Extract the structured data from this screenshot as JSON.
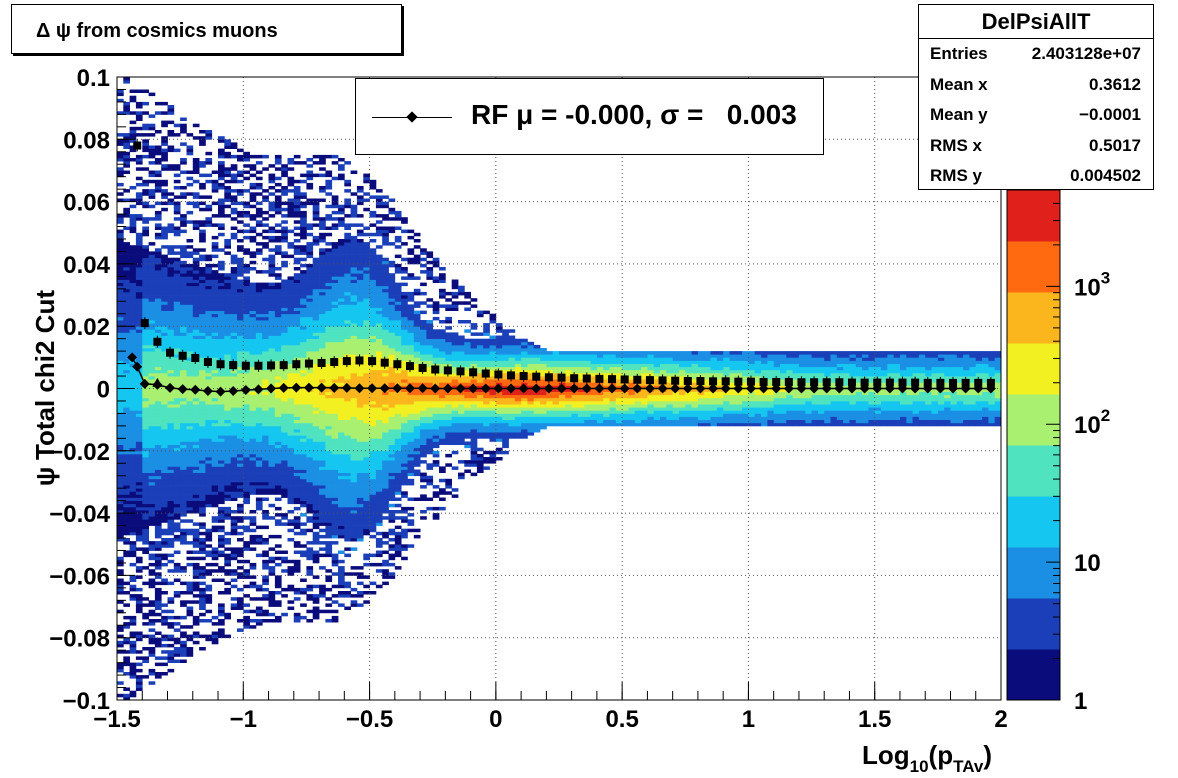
{
  "title": "Δ ψ from cosmics muons",
  "stats": {
    "name": "DelPsiAllT",
    "rows": [
      {
        "label": "Entries",
        "value": "2.403128e+07"
      },
      {
        "label": "Mean x",
        "value": "0.3612"
      },
      {
        "label": "Mean y",
        "value": "−0.0001"
      },
      {
        "label": "RMS x",
        "value": "0.5017"
      },
      {
        "label": "RMS y",
        "value": "0.004502"
      }
    ]
  },
  "legend": {
    "label": "RF μ = -0.000, σ =   0.003"
  },
  "chart_data": {
    "type": "heatmap",
    "xlabel": {
      "main": "Log",
      "sub1": "10",
      "mid": "(p",
      "sub2": "TAv",
      "end": ")"
    },
    "ylabel": {
      "main": "ψ",
      "rest": "Total chi2 Cut"
    },
    "xlim": [
      -1.5,
      2
    ],
    "ylim": [
      -0.1,
      0.1
    ],
    "x_ticks": [
      "−1.5",
      "−1",
      "−0.5",
      "0",
      "0.5",
      "1",
      "1.5",
      "2"
    ],
    "x_tick_values": [
      -1.5,
      -1,
      -0.5,
      0,
      0.5,
      1,
      1.5,
      2
    ],
    "y_ticks": [
      "−0.1",
      "−0.08",
      "−0.06",
      "−0.04",
      "−0.02",
      "0",
      "0.02",
      "0.04",
      "0.06",
      "0.08",
      "0.1"
    ],
    "y_tick_values": [
      -0.1,
      -0.08,
      -0.06,
      -0.04,
      -0.02,
      0,
      0.02,
      0.04,
      0.06,
      0.08,
      0.1
    ],
    "grid": true,
    "z_scale": "log",
    "zlim": [
      1,
      5000
    ],
    "z_ticks": [
      {
        "value": 1,
        "base": "1",
        "exp": ""
      },
      {
        "value": 10,
        "base": "10",
        "exp": ""
      },
      {
        "value": 100,
        "base": "10",
        "exp": "2"
      },
      {
        "value": 1000,
        "base": "10",
        "exp": "3"
      }
    ],
    "colormap": [
      "#0b0c7c",
      "#1a3fb8",
      "#1b8fe4",
      "#15c7f0",
      "#4fe3c0",
      "#a9f070",
      "#f2f020",
      "#fbb51d",
      "#ff6a10",
      "#e0201a"
    ],
    "series": [
      {
        "name": "RF",
        "marker": "diamond",
        "x": [
          -1.44,
          -1.42,
          -1.39,
          -1.34,
          -1.29,
          -1.24,
          -1.19,
          -1.14,
          -1.09,
          -1.04,
          -0.99,
          -0.94,
          -0.89,
          -0.84,
          -0.79,
          -0.74,
          -0.69,
          -0.64,
          -0.59,
          -0.54,
          -0.49,
          -0.44,
          -0.39,
          -0.34,
          -0.29,
          -0.24,
          -0.19,
          -0.14,
          -0.09,
          -0.04,
          0.01,
          0.06,
          0.11,
          0.16,
          0.21,
          0.26,
          0.31,
          0.36,
          0.41,
          0.46,
          0.51,
          0.56,
          0.61,
          0.66,
          0.71,
          0.76,
          0.81,
          0.86,
          0.91,
          0.96,
          1.01,
          1.06,
          1.11,
          1.16,
          1.21,
          1.26,
          1.31,
          1.36,
          1.41,
          1.46,
          1.51,
          1.56,
          1.61,
          1.66,
          1.71,
          1.76,
          1.81,
          1.86,
          1.91,
          1.96
        ],
        "y": [
          0.01,
          0.007,
          0.0015,
          0.0012,
          0.0002,
          -0.0002,
          -0.0004,
          -0.0008,
          -0.001,
          -0.0008,
          -0.0005,
          -0.0003,
          0.0,
          0.0002,
          0.0003,
          0.0003,
          0.0003,
          0.0002,
          0.0002,
          0.0001,
          0.0001,
          0.0001,
          0.0001,
          0.0001,
          0.0001,
          0.0,
          0.0,
          0.0,
          0.0,
          0.0,
          0.0,
          0.0,
          0.0,
          0.0,
          0.0,
          0.0,
          0.0,
          0.0,
          0.0,
          0.0,
          0.0,
          0.0,
          0.0,
          0.0,
          0.0,
          0.0,
          0.0,
          0.0,
          0.0,
          0.0,
          0.0,
          0.0,
          0.0,
          0.0,
          0.0,
          0.0,
          0.0,
          0.0,
          0.0,
          0.0,
          0.0,
          0.0,
          0.0,
          0.0,
          0.0,
          0.0,
          0.0,
          0.0,
          0.0,
          0.0
        ]
      },
      {
        "name": "",
        "marker": "square",
        "x": [
          -1.42,
          -1.39,
          -1.34,
          -1.29,
          -1.24,
          -1.19,
          -1.14,
          -1.09,
          -1.04,
          -0.99,
          -0.94,
          -0.89,
          -0.84,
          -0.79,
          -0.74,
          -0.69,
          -0.64,
          -0.59,
          -0.54,
          -0.49,
          -0.44,
          -0.39,
          -0.34,
          -0.29,
          -0.24,
          -0.19,
          -0.14,
          -0.09,
          -0.04,
          0.01,
          0.06,
          0.11,
          0.16,
          0.21,
          0.26,
          0.31,
          0.36,
          0.41,
          0.46,
          0.51,
          0.56,
          0.61,
          0.66,
          0.71,
          0.76,
          0.81,
          0.86,
          0.91,
          0.96,
          1.01,
          1.06,
          1.11,
          1.16,
          1.21,
          1.26,
          1.31,
          1.36,
          1.41,
          1.46,
          1.51,
          1.56,
          1.61,
          1.66,
          1.71,
          1.76,
          1.81,
          1.86,
          1.91,
          1.96
        ],
        "y": [
          0.078,
          0.021,
          0.015,
          0.0115,
          0.0105,
          0.0098,
          0.0085,
          0.0078,
          0.0075,
          0.0073,
          0.0073,
          0.0074,
          0.0075,
          0.0078,
          0.008,
          0.0082,
          0.0085,
          0.0088,
          0.009,
          0.0088,
          0.0083,
          0.0078,
          0.0072,
          0.0066,
          0.0061,
          0.0058,
          0.0055,
          0.0052,
          0.0048,
          0.0045,
          0.0042,
          0.004,
          0.0038,
          0.0036,
          0.0035,
          0.0033,
          0.0032,
          0.0031,
          0.003,
          0.0029,
          0.0028,
          0.0027,
          0.0026,
          0.0025,
          0.0024,
          0.0024,
          0.0023,
          0.0023,
          0.0022,
          0.0022,
          0.0021,
          0.0021,
          0.0021,
          0.002,
          0.002,
          0.002,
          0.002,
          0.0019,
          0.0019,
          0.0019,
          0.0019,
          0.0019,
          0.0019,
          0.0018,
          0.0018,
          0.0018,
          0.0018,
          0.0018,
          0.0018
        ]
      }
    ],
    "extra_marker": {
      "marker": "triangle",
      "x": -1.34,
      "y": 0.0015
    }
  }
}
